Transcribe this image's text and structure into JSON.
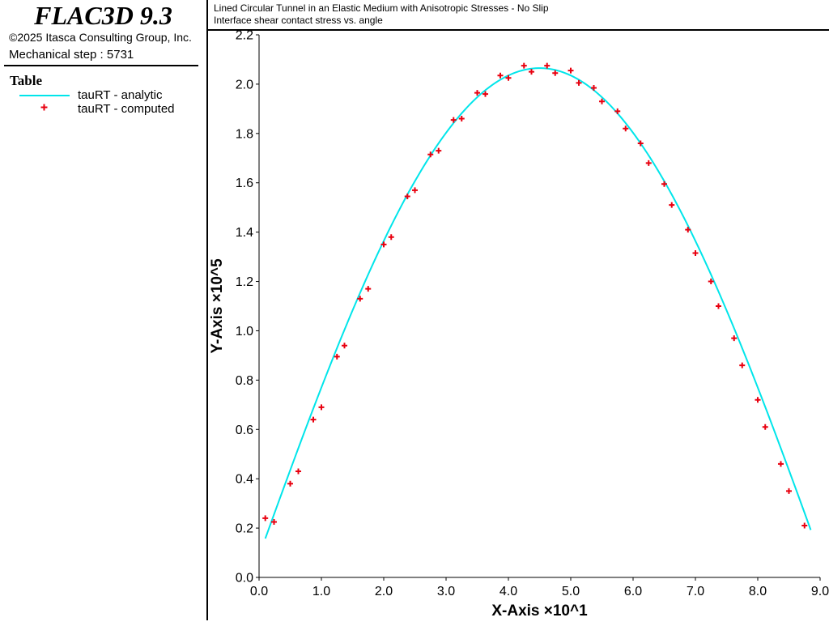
{
  "app": {
    "title": "FLAC3D 9.3",
    "copyright": "©2025 Itasca Consulting Group, Inc.",
    "step": "Mechanical step : 5731"
  },
  "legend": {
    "title": "Table",
    "items": [
      {
        "label": "tauRT - analytic",
        "color": "#00e5ea",
        "style": "line"
      },
      {
        "label": "tauRT - computed",
        "color": "#e8000f",
        "style": "plus"
      }
    ]
  },
  "header": {
    "title": "Lined Circular Tunnel in an Elastic Medium with Anisotropic Stresses - No Slip",
    "subtitle": "Interface shear contact stress vs. angle"
  },
  "chart_data": {
    "type": "scatter",
    "xlabel": "X-Axis ×10^1",
    "ylabel": "Y-Axis ×10^5",
    "xlim": [
      0,
      9
    ],
    "ylim": [
      0,
      2.2
    ],
    "xticks": [
      "0.0",
      "1.0",
      "2.0",
      "3.0",
      "4.0",
      "5.0",
      "6.0",
      "7.0",
      "8.0",
      "9.0"
    ],
    "yticks": [
      "0.0",
      "0.2",
      "0.4",
      "0.6",
      "0.8",
      "1.0",
      "1.2",
      "1.4",
      "1.6",
      "1.8",
      "2.0",
      "2.2"
    ],
    "series": [
      {
        "name": "tauRT - analytic",
        "style": "line",
        "color": "#00e5ea",
        "curve": {
          "form": "sine",
          "amplitude": 2.065,
          "x_zero_start": -0.125,
          "x_zero_end": 9.125,
          "x_range": [
            0.1,
            8.85
          ]
        }
      },
      {
        "name": "tauRT - computed",
        "style": "marker",
        "color": "#e8000f",
        "x": [
          0.1,
          0.24,
          0.5,
          0.63,
          0.87,
          1.0,
          1.25,
          1.37,
          1.62,
          1.75,
          2.0,
          2.12,
          2.38,
          2.5,
          2.75,
          2.88,
          3.12,
          3.25,
          3.5,
          3.63,
          3.87,
          4.0,
          4.25,
          4.37,
          4.62,
          4.75,
          5.0,
          5.13,
          5.37,
          5.5,
          5.75,
          5.88,
          6.12,
          6.25,
          6.5,
          6.62,
          6.88,
          7.0,
          7.25,
          7.37,
          7.62,
          7.75,
          8.0,
          8.12,
          8.37,
          8.5,
          8.75
        ],
        "y": [
          0.24,
          0.225,
          0.38,
          0.43,
          0.64,
          0.69,
          0.895,
          0.94,
          1.13,
          1.17,
          1.35,
          1.38,
          1.545,
          1.57,
          1.715,
          1.73,
          1.855,
          1.86,
          1.965,
          1.96,
          2.035,
          2.025,
          2.075,
          2.05,
          2.075,
          2.045,
          2.055,
          2.005,
          1.985,
          1.93,
          1.89,
          1.82,
          1.76,
          1.68,
          1.595,
          1.51,
          1.41,
          1.315,
          1.2,
          1.1,
          0.97,
          0.86,
          0.72,
          0.61,
          0.46,
          0.35,
          0.21
        ]
      }
    ]
  }
}
